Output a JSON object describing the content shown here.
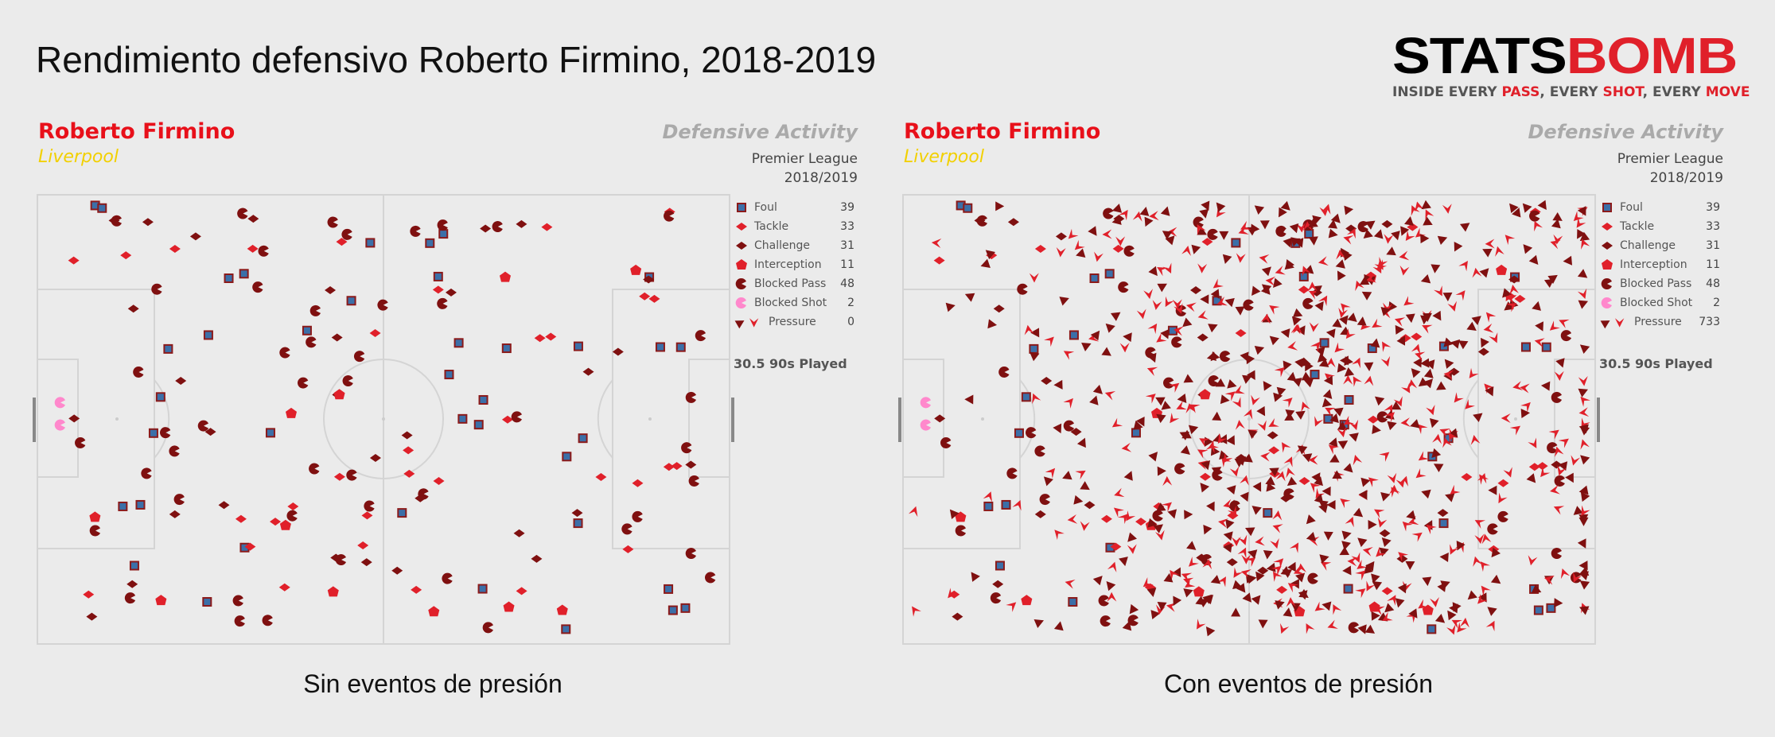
{
  "title": "Rendimiento defensivo Roberto Firmino, 2018-2019",
  "logo": {
    "word_black": "STATS",
    "word_red": "BOMB",
    "tag_parts": [
      "INSIDE EVERY ",
      "PASS",
      ", EVERY ",
      "SHOT",
      ", EVERY ",
      "MOVE"
    ]
  },
  "colors": {
    "foul_fill": "#3b6fa8",
    "foul_border": "#8b1a1a",
    "tackle": "#e0202a",
    "challenge": "#7f1010",
    "interception": "#e0202a",
    "blocked_pass": "#7f1010",
    "blocked_shot": "#ff88cc",
    "pressure_dark": "#7f1010",
    "pressure_light": "#e0202a"
  },
  "chart_data": [
    {
      "type": "scatter",
      "player": "Roberto Firmino",
      "team": "Liverpool",
      "heading": "Defensive Activity",
      "competition": "Premier League",
      "season": "2018/2019",
      "played": "30.5 90s Played",
      "caption": "Sin eventos de presión",
      "legend": [
        {
          "label": "Foul",
          "value": 39
        },
        {
          "label": "Tackle",
          "value": 33
        },
        {
          "label": "Challenge",
          "value": 31
        },
        {
          "label": "Interception",
          "value": 11
        },
        {
          "label": "Blocked Pass",
          "value": 48
        },
        {
          "label": "Blocked Shot",
          "value": 2
        },
        {
          "label": "Pressure",
          "value": 0
        }
      ],
      "pitch_units": [
        120,
        80
      ]
    },
    {
      "type": "scatter",
      "player": "Roberto Firmino",
      "team": "Liverpool",
      "heading": "Defensive Activity",
      "competition": "Premier League",
      "season": "2018/2019",
      "played": "30.5 90s Played",
      "caption": "Con eventos de presión",
      "legend": [
        {
          "label": "Foul",
          "value": 39
        },
        {
          "label": "Tackle",
          "value": 33
        },
        {
          "label": "Challenge",
          "value": 31
        },
        {
          "label": "Interception",
          "value": 11
        },
        {
          "label": "Blocked Pass",
          "value": 48
        },
        {
          "label": "Blocked Shot",
          "value": 2
        },
        {
          "label": "Pressure",
          "value": 733
        }
      ],
      "pitch_units": [
        120,
        80
      ]
    }
  ]
}
